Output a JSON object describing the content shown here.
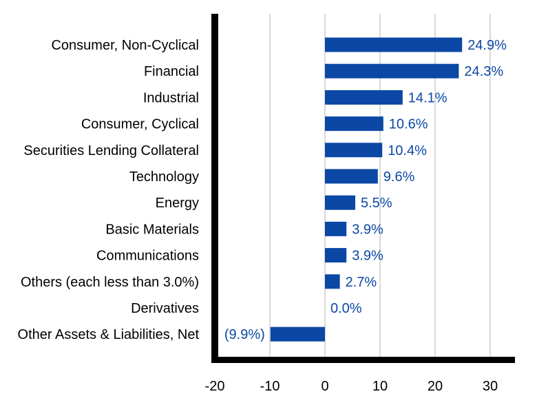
{
  "chart_data": {
    "type": "bar",
    "orientation": "horizontal",
    "title": "",
    "xlabel": "",
    "ylabel": "",
    "categories": [
      "Consumer, Non-Cyclical",
      "Financial",
      "Industrial",
      "Consumer, Cyclical",
      "Securities Lending Collateral",
      "Technology",
      "Energy",
      "Basic Materials",
      "Communications",
      "Others (each less than 3.0%)",
      "Derivatives",
      "Other Assets & Liabilities, Net"
    ],
    "values": [
      24.9,
      24.3,
      14.1,
      10.6,
      10.4,
      9.6,
      5.5,
      3.9,
      3.9,
      2.7,
      0.0,
      -9.9
    ],
    "value_labels": [
      "24.9%",
      "24.3%",
      "14.1%",
      "10.6%",
      "10.4%",
      "9.6%",
      "5.5%",
      "3.9%",
      "3.9%",
      "2.7%",
      "0.0%",
      "(9.9%)"
    ],
    "xlim": [
      -20,
      35
    ],
    "xticks": [
      -20,
      -10,
      0,
      10,
      20,
      30
    ],
    "xtick_labels": [
      "-20",
      "-10",
      "0",
      "10",
      "20",
      "30"
    ],
    "grid": "vertical",
    "legend": "none",
    "colors": {
      "bar": "#0b47a5",
      "value_label": "#0b47a5",
      "grid": "#d9d9d9",
      "axis": "#000000"
    }
  }
}
